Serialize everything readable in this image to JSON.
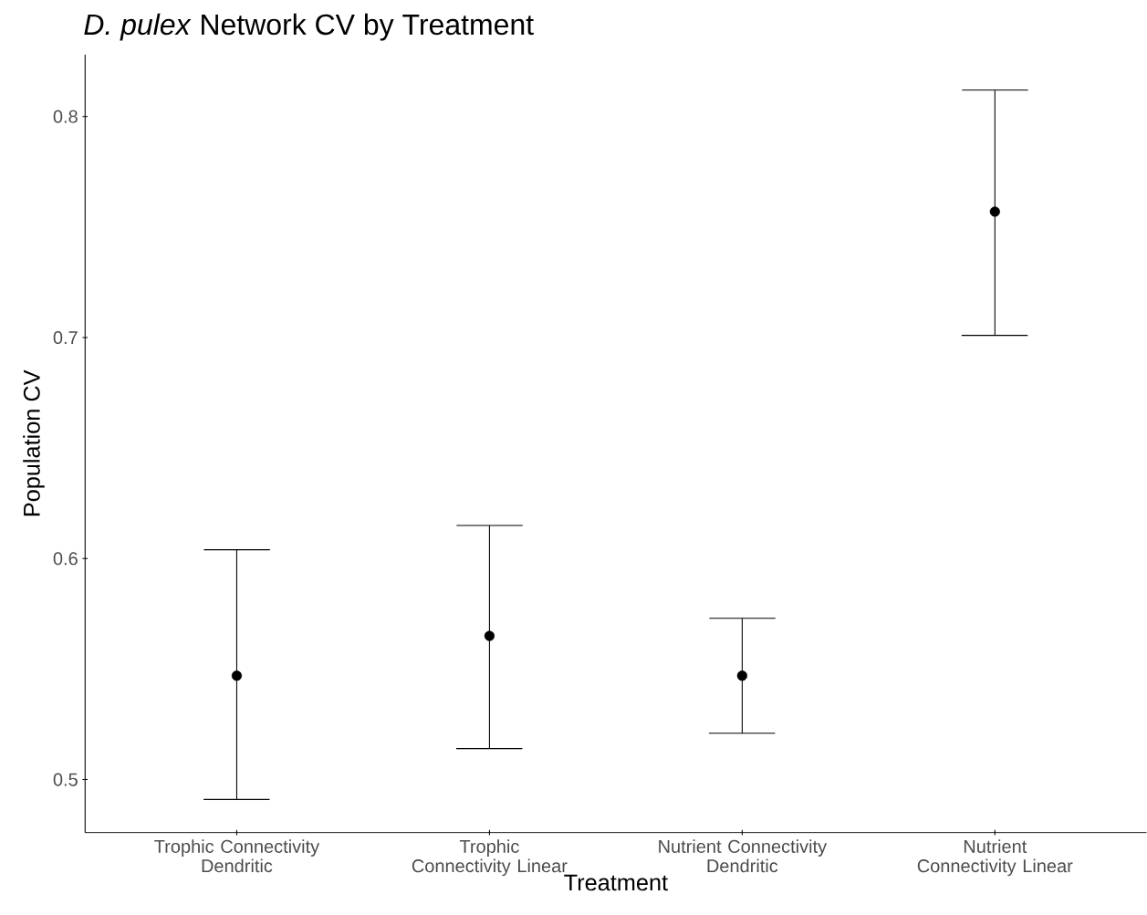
{
  "chart_data": {
    "type": "scatter",
    "title": "*D. pulex* Network CV by Treatment",
    "xlabel": "Treatment",
    "ylabel": "Population CV",
    "categories": [
      "Trophic Connectivity Dendritic",
      "Trophic Connectivity Linear",
      "Nutrient Connectivity Dendritic",
      "Nutrient Connectivity Linear"
    ],
    "values": [
      0.547,
      0.565,
      0.547,
      0.757
    ],
    "errors": [
      [
        0.491,
        0.604
      ],
      [
        0.514,
        0.615
      ],
      [
        0.521,
        0.573
      ],
      [
        0.701,
        0.812
      ]
    ],
    "color": "#000000",
    "ylim": [
      0.476,
      0.828
    ],
    "yticks": [
      0.5,
      0.6,
      0.7,
      0.8
    ]
  }
}
